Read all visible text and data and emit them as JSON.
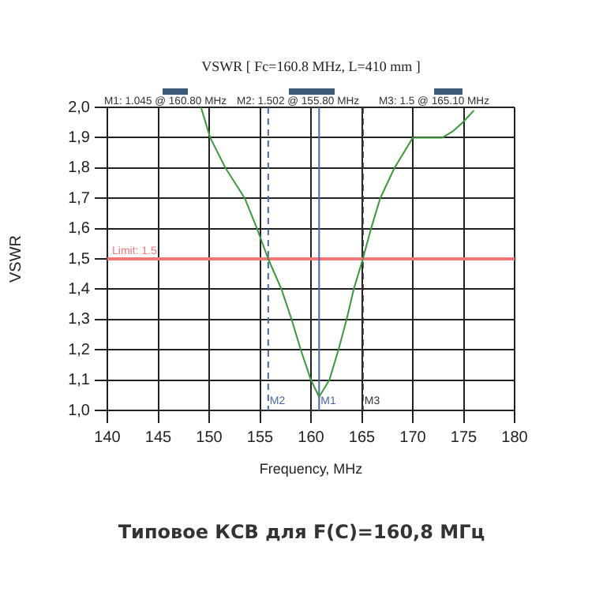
{
  "chart_data": {
    "type": "line",
    "title": "VSWR [ Fc=160.8 MHz, L=410 mm ]",
    "xlabel": "Frequency, MHz",
    "ylabel": "VSWR",
    "series": [
      {
        "color": "#3a9a3a",
        "x": [
          149.2,
          150.1,
          151.6,
          153.5,
          154.7,
          155.8,
          157.1,
          158.1,
          159.0,
          160.0,
          160.8,
          161.8,
          162.7,
          163.5,
          164.2,
          165.1,
          165.9,
          166.8,
          168.2,
          170.0,
          172.9,
          173.9,
          174.9,
          176.0
        ],
        "values": [
          2.0,
          1.9,
          1.8,
          1.7,
          1.6,
          1.5,
          1.4,
          1.3,
          1.2,
          1.1,
          1.045,
          1.1,
          1.2,
          1.3,
          1.4,
          1.5,
          1.6,
          1.7,
          1.8,
          1.9,
          1.9,
          1.92,
          1.95,
          1.99
        ]
      }
    ],
    "xlim": [
      140,
      180
    ],
    "xticks": [
      140,
      145,
      150,
      155,
      160,
      165,
      170,
      175,
      180
    ],
    "ylim": [
      1.0,
      2.0
    ],
    "yticks": [
      {
        "value": 1.0,
        "label": "1,0"
      },
      {
        "value": 1.1,
        "label": "1,1"
      },
      {
        "value": 1.2,
        "label": "1,2"
      },
      {
        "value": 1.3,
        "label": "1,3"
      },
      {
        "value": 1.4,
        "label": "1,4"
      },
      {
        "value": 1.5,
        "label": "1,5"
      },
      {
        "value": 1.6,
        "label": "1,6"
      },
      {
        "value": 1.7,
        "label": "1,7"
      },
      {
        "value": 1.8,
        "label": "1,8"
      },
      {
        "value": 1.9,
        "label": "1,9"
      },
      {
        "value": 2.0,
        "label": "2,0"
      }
    ],
    "grid": true,
    "marker": "none",
    "line_style": "solid",
    "legend": false,
    "ref_lines": [
      {
        "axis": "y",
        "value": 1.5,
        "label": "Limit: 1.5",
        "color": "#f07878"
      },
      {
        "axis": "x",
        "value": 160.8,
        "label": "M1",
        "color": "#4a68b0"
      },
      {
        "axis": "x",
        "value": 155.8,
        "label": "M2",
        "color": "#4a68b0",
        "line_style": "dashed"
      },
      {
        "axis": "x",
        "value": 165.1,
        "label": "M3",
        "color": "#333333",
        "line_style": "dashed"
      }
    ],
    "annotations": [
      "M1: 1.045 @ 160.80 MHz",
      "M2: 1.502 @ 155.80 MHz",
      "M3: 1.5 @ 165.10 MHz",
      "Типовое КСВ для F(C)=160,8 МГц"
    ]
  }
}
